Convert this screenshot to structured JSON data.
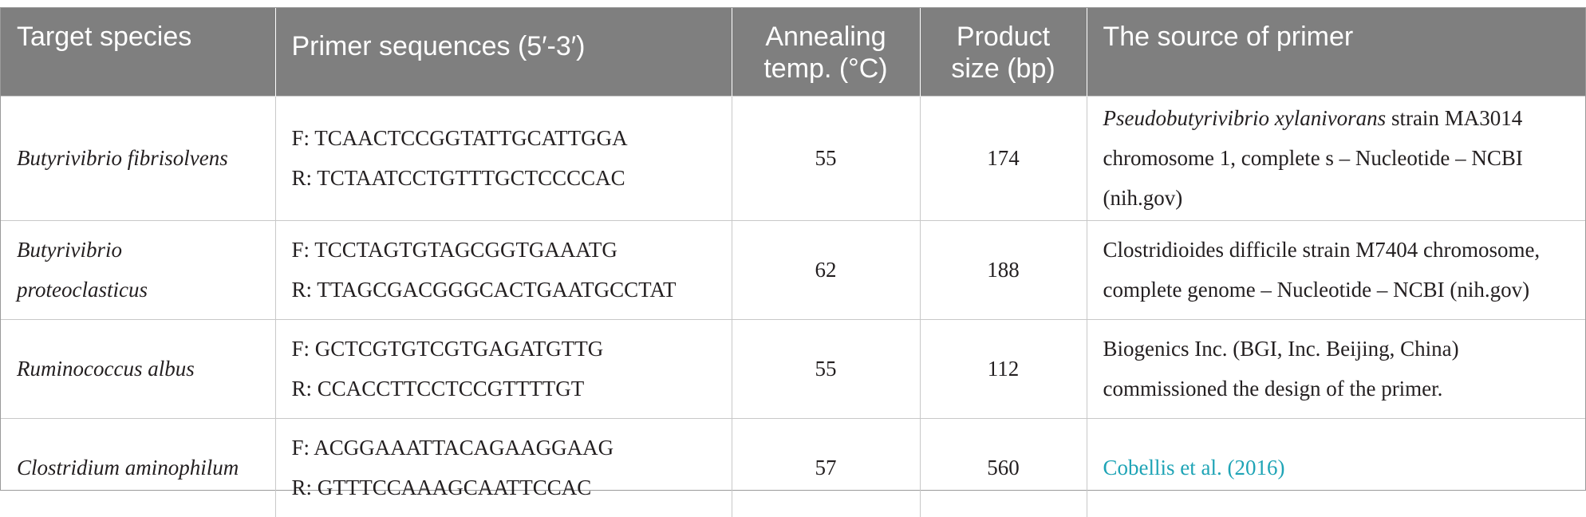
{
  "header": {
    "target_species": "Target species",
    "primer_sequences": "Primer sequences (5′-3′)",
    "annealing_line1": "Annealing",
    "annealing_line2": "temp. (°C)",
    "product_line1": "Product",
    "product_line2": "size (bp)",
    "source": "The source of primer"
  },
  "rows": [
    {
      "species_line1": "Butyrivibrio fibrisolvens",
      "species_line2": "",
      "forward": "F: TCAACTCCGGTATTGCATTGGA",
      "reverse": "R: TCTAATCCTGTTTGCTCCCCAC",
      "annealing": "55",
      "product": "174",
      "source_italic": "Pseudobutyrivibrio xylanivorans",
      "source_text": " strain MA3014 chromosome 1, complete s – Nucleotide – NCBI (nih.gov)"
    },
    {
      "species_line1": "Butyrivibrio",
      "species_line2": "proteoclasticus",
      "forward": "F: TCCTAGTGTAGCGGTGAAATG",
      "reverse": "R: TTAGCGACGGGCACTGAATGCCTAT",
      "annealing": "62",
      "product": "188",
      "source_italic": "",
      "source_text": "Clostridioides difficile strain M7404 chromosome, complete genome – Nucleotide – NCBI (nih.gov)"
    },
    {
      "species_line1": "Ruminococcus albus",
      "species_line2": "",
      "forward": "F: GCTCGTGTCGTGAGATGTTG",
      "reverse": "R: CCACCTTCCTCCGTTTTGT",
      "annealing": "55",
      "product": "112",
      "source_italic": "",
      "source_text": "Biogenics Inc. (BGI, Inc. Beijing, China) commissioned the design of the primer."
    },
    {
      "species_line1": "Clostridium aminophilum",
      "species_line2": "",
      "forward": "F: ACGGAAATTACAGAAGGAAG",
      "reverse": "R: GTTTCCAAAGCAATTCCAC",
      "annealing": "57",
      "product": "560",
      "source_italic": "",
      "source_link": "Cobellis et al. (2016)",
      "source_text": ""
    }
  ],
  "colors": {
    "header_bg": "#7f7f7f",
    "header_text": "#ffffff",
    "link": "#1fa4b6"
  }
}
